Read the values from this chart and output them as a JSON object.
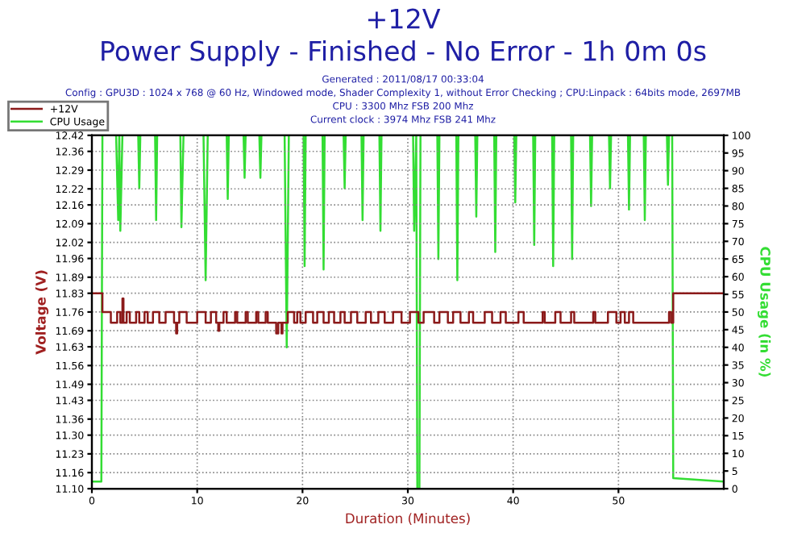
{
  "chart_data": {
    "type": "line",
    "title": "+12V",
    "subtitle": "Power Supply - Finished - No Error - 1h 0m 0s",
    "annotations": [
      "Generated : 2011/08/17 00:33:04",
      "Config : GPU3D : 1024 x 768 @ 60 Hz, Windowed mode, Shader Complexity 1, without Error Checking ; CPU:Linpack : 64bits mode, 2697MB",
      "CPU : 3300 Mhz FSB 200 Mhz",
      "Current clock : 3974 Mhz FSB 241 Mhz"
    ],
    "xlabel": "Duration (Minutes)",
    "ylabel": "Voltage (V)",
    "y2label": "CPU Usage (in %)",
    "xlim": [
      0,
      60
    ],
    "xticks": [
      0,
      10,
      20,
      30,
      40,
      50
    ],
    "ylim": [
      11.1,
      12.42
    ],
    "yticks": [
      {
        "value": 11.1,
        "label": "11.10"
      },
      11.16,
      11.23,
      {
        "value": 11.3,
        "label": "11.30"
      },
      11.36,
      11.43,
      11.49,
      11.56,
      11.63,
      11.69,
      11.76,
      11.83,
      11.89,
      11.96,
      12.02,
      12.09,
      12.16,
      12.22,
      12.29,
      12.36,
      12.42
    ],
    "y2lim": [
      0,
      100
    ],
    "y2ticks": [
      0,
      5,
      10,
      15,
      20,
      25,
      30,
      35,
      40,
      45,
      50,
      55,
      60,
      65,
      70,
      75,
      80,
      85,
      90,
      95,
      100
    ],
    "grid": true,
    "legend": "top left",
    "line_style": "solid",
    "series": [
      {
        "name": "+12V",
        "type": "step",
        "color": "#8b1a1a",
        "x": [
          0,
          1.0,
          1.8,
          2.4,
          2.7,
          2.9,
          3.0,
          3.3,
          3.6,
          4.2,
          4.5,
          5.0,
          5.3,
          5.8,
          6.4,
          7.0,
          7.8,
          8.0,
          8.1,
          8.3,
          9.0,
          10.0,
          10.8,
          11.3,
          11.8,
          12.0,
          12.1,
          12.5,
          12.8,
          13.6,
          13.8,
          14.6,
          14.8,
          15.6,
          15.8,
          16.5,
          16.7,
          17.5,
          17.7,
          18.0,
          18.1,
          18.6,
          19.2,
          19.5,
          19.8,
          20.3,
          21.0,
          21.4,
          22.0,
          22.5,
          23.0,
          23.6,
          24.0,
          24.6,
          25.2,
          26.0,
          26.5,
          27.2,
          27.8,
          28.6,
          29.4,
          30.2,
          31.0,
          31.5,
          32.5,
          33.0,
          33.8,
          34.3,
          35.0,
          35.8,
          36.2,
          37.3,
          38.0,
          38.8,
          39.3,
          40.5,
          41.0,
          42.8,
          43.0,
          44.0,
          44.5,
          45.5,
          45.8,
          47.6,
          47.8,
          49.0,
          49.8,
          50.2,
          50.6,
          51.0,
          51.4,
          54.8,
          55.0,
          55.2,
          60
        ],
        "values": [
          11.83,
          11.76,
          11.72,
          11.76,
          11.72,
          11.81,
          11.72,
          11.76,
          11.72,
          11.76,
          11.72,
          11.76,
          11.72,
          11.76,
          11.72,
          11.76,
          11.72,
          11.68,
          11.72,
          11.76,
          11.72,
          11.76,
          11.72,
          11.76,
          11.72,
          11.69,
          11.72,
          11.76,
          11.72,
          11.76,
          11.72,
          11.76,
          11.72,
          11.76,
          11.72,
          11.76,
          11.72,
          11.68,
          11.72,
          11.68,
          11.72,
          11.76,
          11.72,
          11.76,
          11.72,
          11.76,
          11.72,
          11.76,
          11.72,
          11.76,
          11.72,
          11.76,
          11.72,
          11.76,
          11.72,
          11.76,
          11.72,
          11.76,
          11.72,
          11.76,
          11.72,
          11.76,
          11.72,
          11.76,
          11.72,
          11.76,
          11.72,
          11.76,
          11.72,
          11.76,
          11.72,
          11.76,
          11.72,
          11.76,
          11.72,
          11.76,
          11.72,
          11.76,
          11.72,
          11.76,
          11.72,
          11.76,
          11.72,
          11.76,
          11.72,
          11.76,
          11.72,
          11.76,
          11.72,
          11.76,
          11.72,
          11.76,
          11.72,
          11.83,
          11.83
        ]
      },
      {
        "name": "CPU Usage",
        "axis": "y2",
        "color": "#33dd33",
        "x": [
          0,
          0.9,
          1.0,
          2.3,
          2.5,
          2.6,
          2.7,
          2.9,
          4.4,
          4.5,
          4.6,
          6.0,
          6.1,
          6.2,
          8.4,
          8.5,
          8.7,
          10.6,
          10.8,
          11.0,
          12.8,
          12.9,
          13.0,
          14.4,
          14.5,
          14.6,
          15.9,
          16.0,
          16.1,
          18.3,
          18.5,
          18.7,
          20.1,
          20.2,
          20.3,
          21.9,
          22.0,
          22.1,
          23.9,
          24.0,
          24.1,
          25.6,
          25.7,
          25.8,
          27.3,
          27.4,
          27.5,
          30.5,
          30.6,
          30.8,
          30.9,
          31.1,
          31.2,
          32.8,
          32.9,
          33.0,
          34.6,
          34.7,
          34.8,
          36.4,
          36.5,
          36.6,
          38.2,
          38.3,
          38.4,
          40.1,
          40.2,
          40.3,
          41.9,
          42.0,
          42.1,
          43.7,
          43.8,
          43.9,
          45.5,
          45.6,
          45.7,
          47.3,
          47.4,
          47.5,
          49.1,
          49.2,
          49.3,
          50.9,
          51.0,
          51.1,
          52.4,
          52.5,
          52.6,
          54.6,
          54.7,
          54.8,
          55.1,
          55.2,
          60
        ],
        "values": [
          2,
          2,
          100,
          100,
          76,
          100,
          73,
          100,
          100,
          85,
          100,
          100,
          76,
          100,
          100,
          74,
          100,
          100,
          59,
          100,
          100,
          82,
          100,
          100,
          88,
          100,
          100,
          88,
          100,
          100,
          40,
          100,
          100,
          63,
          100,
          100,
          62,
          100,
          100,
          85,
          100,
          100,
          76,
          100,
          100,
          73,
          100,
          100,
          73,
          100,
          0,
          0,
          100,
          100,
          65,
          100,
          100,
          59,
          100,
          100,
          77,
          100,
          100,
          67,
          100,
          100,
          81,
          100,
          100,
          69,
          100,
          100,
          63,
          100,
          100,
          65,
          100,
          100,
          80,
          100,
          100,
          85,
          100,
          100,
          79,
          100,
          100,
          76,
          100,
          100,
          86,
          100,
          100,
          3,
          2
        ]
      }
    ]
  }
}
